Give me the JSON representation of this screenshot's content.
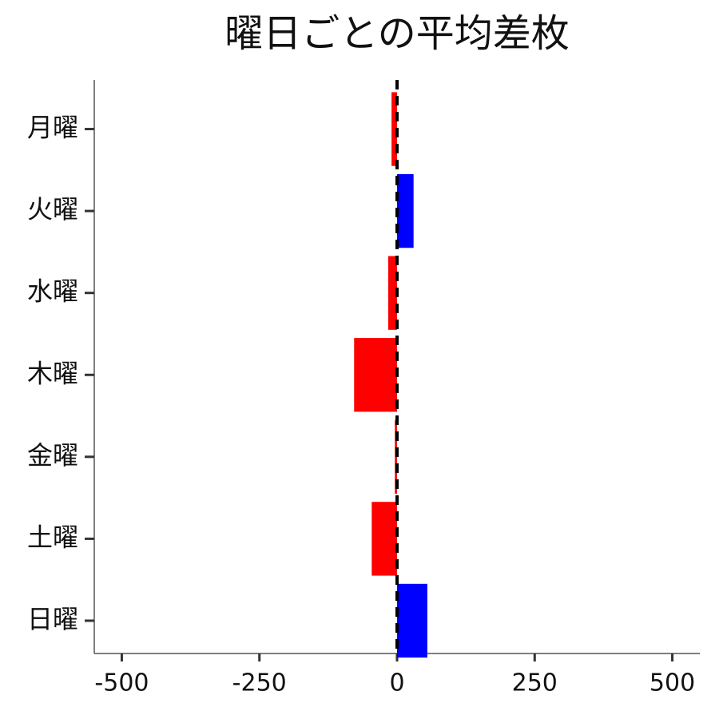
{
  "chart_data": {
    "type": "barh",
    "title": "曜日ごとの平均差枚",
    "categories": [
      "月曜",
      "火曜",
      "水曜",
      "木曜",
      "金曜",
      "土曜",
      "日曜"
    ],
    "values": [
      -10,
      30,
      -16,
      -78,
      -4,
      -46,
      55
    ],
    "colors": [
      "#ff0000",
      "#0000ff",
      "#ff0000",
      "#ff0000",
      "#ff0000",
      "#ff0000",
      "#0000ff"
    ],
    "xlim": [
      -550,
      550
    ],
    "xticks": [
      -500,
      -250,
      0,
      250,
      500
    ],
    "reference_line": 0
  }
}
